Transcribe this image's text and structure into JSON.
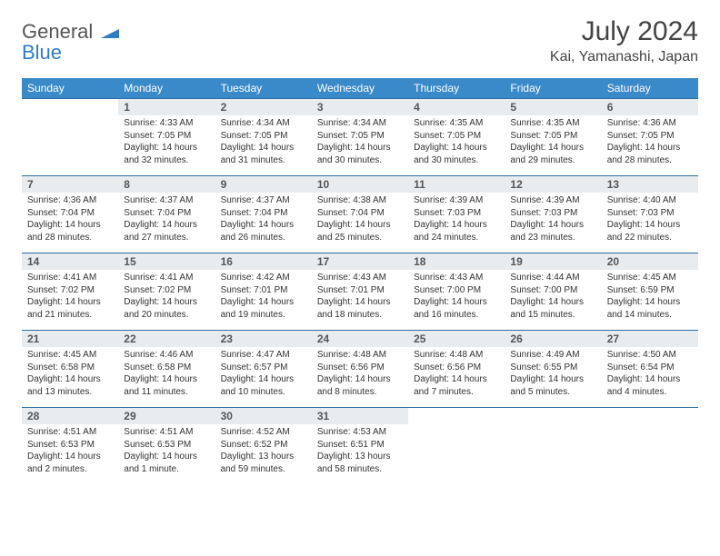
{
  "brand": {
    "word1": "General",
    "word2": "Blue"
  },
  "title": "July 2024",
  "location": "Kai, Yamanashi, Japan",
  "colors": {
    "header_bg": "#3a89c9",
    "header_text": "#ffffff",
    "daynum_bg": "#e9ecef",
    "row_border": "#2d6da3",
    "body_text": "#333333",
    "title_text": "#444444",
    "brand_gray": "#555555",
    "brand_blue": "#2f7ec2"
  },
  "fonts": {
    "title_size": 30,
    "location_size": 16,
    "header_size": 12,
    "daynum_size": 12,
    "cell_size": 10
  },
  "days_of_week": [
    "Sunday",
    "Monday",
    "Tuesday",
    "Wednesday",
    "Thursday",
    "Friday",
    "Saturday"
  ],
  "weeks": [
    {
      "numbers": [
        "",
        "1",
        "2",
        "3",
        "4",
        "5",
        "6"
      ],
      "cells": [
        null,
        {
          "sunrise": "Sunrise: 4:33 AM",
          "sunset": "Sunset: 7:05 PM",
          "daylight": "Daylight: 14 hours and 32 minutes."
        },
        {
          "sunrise": "Sunrise: 4:34 AM",
          "sunset": "Sunset: 7:05 PM",
          "daylight": "Daylight: 14 hours and 31 minutes."
        },
        {
          "sunrise": "Sunrise: 4:34 AM",
          "sunset": "Sunset: 7:05 PM",
          "daylight": "Daylight: 14 hours and 30 minutes."
        },
        {
          "sunrise": "Sunrise: 4:35 AM",
          "sunset": "Sunset: 7:05 PM",
          "daylight": "Daylight: 14 hours and 30 minutes."
        },
        {
          "sunrise": "Sunrise: 4:35 AM",
          "sunset": "Sunset: 7:05 PM",
          "daylight": "Daylight: 14 hours and 29 minutes."
        },
        {
          "sunrise": "Sunrise: 4:36 AM",
          "sunset": "Sunset: 7:05 PM",
          "daylight": "Daylight: 14 hours and 28 minutes."
        }
      ]
    },
    {
      "numbers": [
        "7",
        "8",
        "9",
        "10",
        "11",
        "12",
        "13"
      ],
      "cells": [
        {
          "sunrise": "Sunrise: 4:36 AM",
          "sunset": "Sunset: 7:04 PM",
          "daylight": "Daylight: 14 hours and 28 minutes."
        },
        {
          "sunrise": "Sunrise: 4:37 AM",
          "sunset": "Sunset: 7:04 PM",
          "daylight": "Daylight: 14 hours and 27 minutes."
        },
        {
          "sunrise": "Sunrise: 4:37 AM",
          "sunset": "Sunset: 7:04 PM",
          "daylight": "Daylight: 14 hours and 26 minutes."
        },
        {
          "sunrise": "Sunrise: 4:38 AM",
          "sunset": "Sunset: 7:04 PM",
          "daylight": "Daylight: 14 hours and 25 minutes."
        },
        {
          "sunrise": "Sunrise: 4:39 AM",
          "sunset": "Sunset: 7:03 PM",
          "daylight": "Daylight: 14 hours and 24 minutes."
        },
        {
          "sunrise": "Sunrise: 4:39 AM",
          "sunset": "Sunset: 7:03 PM",
          "daylight": "Daylight: 14 hours and 23 minutes."
        },
        {
          "sunrise": "Sunrise: 4:40 AM",
          "sunset": "Sunset: 7:03 PM",
          "daylight": "Daylight: 14 hours and 22 minutes."
        }
      ]
    },
    {
      "numbers": [
        "14",
        "15",
        "16",
        "17",
        "18",
        "19",
        "20"
      ],
      "cells": [
        {
          "sunrise": "Sunrise: 4:41 AM",
          "sunset": "Sunset: 7:02 PM",
          "daylight": "Daylight: 14 hours and 21 minutes."
        },
        {
          "sunrise": "Sunrise: 4:41 AM",
          "sunset": "Sunset: 7:02 PM",
          "daylight": "Daylight: 14 hours and 20 minutes."
        },
        {
          "sunrise": "Sunrise: 4:42 AM",
          "sunset": "Sunset: 7:01 PM",
          "daylight": "Daylight: 14 hours and 19 minutes."
        },
        {
          "sunrise": "Sunrise: 4:43 AM",
          "sunset": "Sunset: 7:01 PM",
          "daylight": "Daylight: 14 hours and 18 minutes."
        },
        {
          "sunrise": "Sunrise: 4:43 AM",
          "sunset": "Sunset: 7:00 PM",
          "daylight": "Daylight: 14 hours and 16 minutes."
        },
        {
          "sunrise": "Sunrise: 4:44 AM",
          "sunset": "Sunset: 7:00 PM",
          "daylight": "Daylight: 14 hours and 15 minutes."
        },
        {
          "sunrise": "Sunrise: 4:45 AM",
          "sunset": "Sunset: 6:59 PM",
          "daylight": "Daylight: 14 hours and 14 minutes."
        }
      ]
    },
    {
      "numbers": [
        "21",
        "22",
        "23",
        "24",
        "25",
        "26",
        "27"
      ],
      "cells": [
        {
          "sunrise": "Sunrise: 4:45 AM",
          "sunset": "Sunset: 6:58 PM",
          "daylight": "Daylight: 14 hours and 13 minutes."
        },
        {
          "sunrise": "Sunrise: 4:46 AM",
          "sunset": "Sunset: 6:58 PM",
          "daylight": "Daylight: 14 hours and 11 minutes."
        },
        {
          "sunrise": "Sunrise: 4:47 AM",
          "sunset": "Sunset: 6:57 PM",
          "daylight": "Daylight: 14 hours and 10 minutes."
        },
        {
          "sunrise": "Sunrise: 4:48 AM",
          "sunset": "Sunset: 6:56 PM",
          "daylight": "Daylight: 14 hours and 8 minutes."
        },
        {
          "sunrise": "Sunrise: 4:48 AM",
          "sunset": "Sunset: 6:56 PM",
          "daylight": "Daylight: 14 hours and 7 minutes."
        },
        {
          "sunrise": "Sunrise: 4:49 AM",
          "sunset": "Sunset: 6:55 PM",
          "daylight": "Daylight: 14 hours and 5 minutes."
        },
        {
          "sunrise": "Sunrise: 4:50 AM",
          "sunset": "Sunset: 6:54 PM",
          "daylight": "Daylight: 14 hours and 4 minutes."
        }
      ]
    },
    {
      "numbers": [
        "28",
        "29",
        "30",
        "31",
        "",
        "",
        ""
      ],
      "cells": [
        {
          "sunrise": "Sunrise: 4:51 AM",
          "sunset": "Sunset: 6:53 PM",
          "daylight": "Daylight: 14 hours and 2 minutes."
        },
        {
          "sunrise": "Sunrise: 4:51 AM",
          "sunset": "Sunset: 6:53 PM",
          "daylight": "Daylight: 14 hours and 1 minute."
        },
        {
          "sunrise": "Sunrise: 4:52 AM",
          "sunset": "Sunset: 6:52 PM",
          "daylight": "Daylight: 13 hours and 59 minutes."
        },
        {
          "sunrise": "Sunrise: 4:53 AM",
          "sunset": "Sunset: 6:51 PM",
          "daylight": "Daylight: 13 hours and 58 minutes."
        },
        null,
        null,
        null
      ]
    }
  ]
}
